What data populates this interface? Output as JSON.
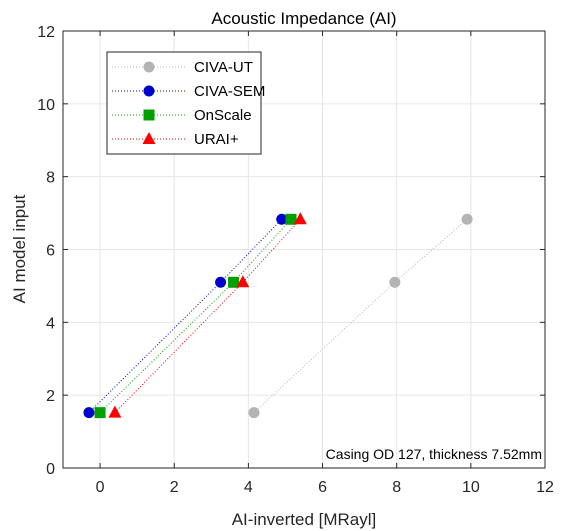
{
  "chart_data": {
    "type": "scatter",
    "title": "Acoustic Impedance (AI)",
    "xlabel": "AI-inverted [MRayl]",
    "ylabel": "AI model input",
    "xlim": [
      -1,
      12
    ],
    "ylim": [
      0,
      12
    ],
    "xticks": [
      0,
      2,
      4,
      6,
      8,
      10,
      12
    ],
    "yticks": [
      0,
      2,
      4,
      6,
      8,
      10,
      12
    ],
    "grid": true,
    "legend_position": "top-left",
    "annotation": "Casing OD 127, thickness 7.52mm",
    "series": [
      {
        "name": "CIVA-UT",
        "marker": "circle",
        "color": "#b3b3b3",
        "x": [
          4.15,
          7.95,
          9.9
        ],
        "y": [
          1.52,
          5.1,
          6.83
        ]
      },
      {
        "name": "CIVA-SEM",
        "marker": "circle",
        "color": "#0000cc",
        "x": [
          -0.3,
          3.25,
          4.9
        ],
        "y": [
          1.52,
          5.1,
          6.83
        ]
      },
      {
        "name": "OnScale",
        "marker": "square",
        "color": "#00a000",
        "x": [
          0.0,
          3.6,
          5.15
        ],
        "y": [
          1.52,
          5.1,
          6.83
        ]
      },
      {
        "name": "URAI+",
        "marker": "triangle",
        "color": "#ff0000",
        "x": [
          0.4,
          3.85,
          5.4
        ],
        "y": [
          1.52,
          5.1,
          6.83
        ]
      }
    ]
  }
}
